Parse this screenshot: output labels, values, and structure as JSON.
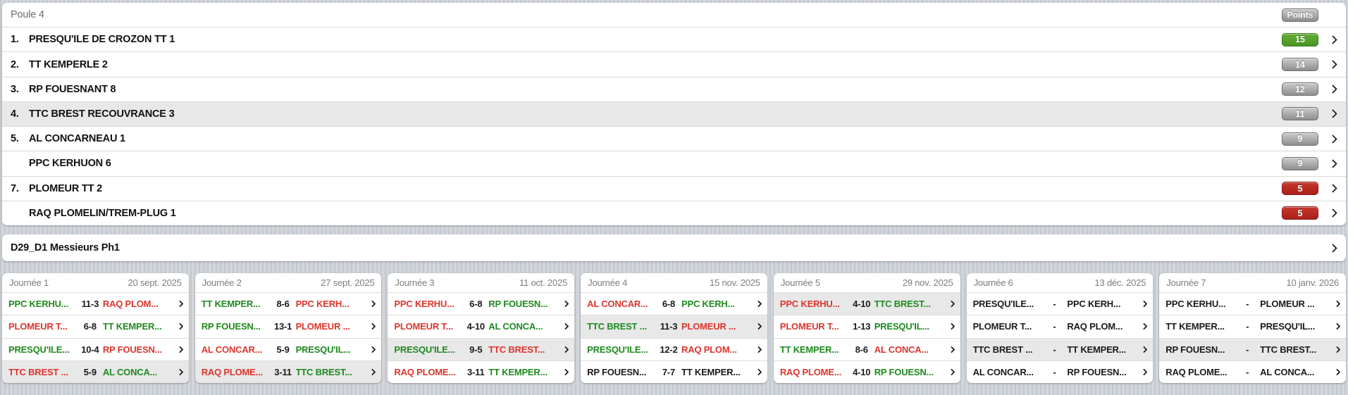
{
  "colors": {
    "win_green": "#1e8a1e",
    "loss_red": "#dd352c",
    "badge_green": "#4a9423",
    "badge_red": "#aa211a",
    "badge_gray": "#8e8e8e",
    "highlight_row": "#e8e8e8"
  },
  "standings": {
    "title": "Poule 4",
    "points_label": "Points",
    "rows": [
      {
        "rank": "1.",
        "team": "PRESQU'ILE DE CROZON TT 1",
        "points": "15",
        "badge": "green",
        "highlight": false
      },
      {
        "rank": "2.",
        "team": "TT KEMPERLE 2",
        "points": "14",
        "badge": "gray",
        "highlight": false
      },
      {
        "rank": "3.",
        "team": "RP FOUESNANT 8",
        "points": "12",
        "badge": "gray",
        "highlight": false
      },
      {
        "rank": "4.",
        "team": "TTC BREST RECOUVRANCE 3",
        "points": "11",
        "badge": "gray",
        "highlight": true
      },
      {
        "rank": "5.",
        "team": "AL CONCARNEAU 1",
        "points": "9",
        "badge": "gray",
        "highlight": false
      },
      {
        "rank": "",
        "team": "PPC KERHUON 6",
        "points": "9",
        "badge": "gray",
        "highlight": false
      },
      {
        "rank": "7.",
        "team": "PLOMEUR TT 2",
        "points": "5",
        "badge": "red",
        "highlight": false
      },
      {
        "rank": "",
        "team": "RAQ PLOMELIN/TREM-PLUG 1",
        "points": "5",
        "badge": "red",
        "highlight": false
      }
    ]
  },
  "division_bar": {
    "label": "D29_D1 Messieurs Ph1"
  },
  "rounds": [
    {
      "title": "Journée 1",
      "date": "20 sept. 2025",
      "matches": [
        {
          "home": "PPC KERHU...",
          "score": "11-3",
          "away": "RAQ PLOM...",
          "home_result": "win",
          "away_result": "loss",
          "highlight": false
        },
        {
          "home": "PLOMEUR T...",
          "score": "6-8",
          "away": "TT KEMPER...",
          "home_result": "loss",
          "away_result": "win",
          "highlight": false
        },
        {
          "home": "PRESQU'ILE...",
          "score": "10-4",
          "away": "RP FOUESN...",
          "home_result": "win",
          "away_result": "loss",
          "highlight": false
        },
        {
          "home": "TTC BREST ...",
          "score": "5-9",
          "away": "AL CONCA...",
          "home_result": "loss",
          "away_result": "win",
          "highlight": true
        }
      ]
    },
    {
      "title": "Journée 2",
      "date": "27 sept. 2025",
      "matches": [
        {
          "home": "TT KEMPER...",
          "score": "8-6",
          "away": "PPC KERH...",
          "home_result": "win",
          "away_result": "loss",
          "highlight": false
        },
        {
          "home": "RP FOUESN...",
          "score": "13-1",
          "away": "PLOMEUR ...",
          "home_result": "win",
          "away_result": "loss",
          "highlight": false
        },
        {
          "home": "AL CONCAR...",
          "score": "5-9",
          "away": "PRESQU'IL...",
          "home_result": "loss",
          "away_result": "win",
          "highlight": false
        },
        {
          "home": "RAQ PLOME...",
          "score": "3-11",
          "away": "TTC BREST...",
          "home_result": "loss",
          "away_result": "win",
          "highlight": true
        }
      ]
    },
    {
      "title": "Journée 3",
      "date": "11 oct. 2025",
      "matches": [
        {
          "home": "PPC KERHU...",
          "score": "6-8",
          "away": "RP FOUESN...",
          "home_result": "loss",
          "away_result": "win",
          "highlight": false
        },
        {
          "home": "PLOMEUR T...",
          "score": "4-10",
          "away": "AL CONCA...",
          "home_result": "loss",
          "away_result": "win",
          "highlight": false
        },
        {
          "home": "PRESQU'ILE...",
          "score": "9-5",
          "away": "TTC BREST...",
          "home_result": "win",
          "away_result": "loss",
          "highlight": true
        },
        {
          "home": "RAQ PLOME...",
          "score": "3-11",
          "away": "TT KEMPER...",
          "home_result": "loss",
          "away_result": "win",
          "highlight": false
        }
      ]
    },
    {
      "title": "Journée 4",
      "date": "15 nov. 2025",
      "matches": [
        {
          "home": "AL CONCAR...",
          "score": "6-8",
          "away": "PPC KERH...",
          "home_result": "loss",
          "away_result": "win",
          "highlight": false
        },
        {
          "home": "TTC BREST ...",
          "score": "11-3",
          "away": "PLOMEUR ...",
          "home_result": "win",
          "away_result": "loss",
          "highlight": true
        },
        {
          "home": "PRESQU'ILE...",
          "score": "12-2",
          "away": "RAQ PLOM...",
          "home_result": "win",
          "away_result": "loss",
          "highlight": false
        },
        {
          "home": "RP FOUESN...",
          "score": "7-7",
          "away": "TT KEMPER...",
          "home_result": "draw",
          "away_result": "draw",
          "highlight": false
        }
      ]
    },
    {
      "title": "Journée 5",
      "date": "29 nov. 2025",
      "matches": [
        {
          "home": "PPC KERHU...",
          "score": "4-10",
          "away": "TTC BREST...",
          "home_result": "loss",
          "away_result": "win",
          "highlight": true
        },
        {
          "home": "PLOMEUR T...",
          "score": "1-13",
          "away": "PRESQU'IL...",
          "home_result": "loss",
          "away_result": "win",
          "highlight": false
        },
        {
          "home": "TT KEMPER...",
          "score": "8-6",
          "away": "AL CONCA...",
          "home_result": "win",
          "away_result": "loss",
          "highlight": false
        },
        {
          "home": "RAQ PLOME...",
          "score": "4-10",
          "away": "RP FOUESN...",
          "home_result": "loss",
          "away_result": "win",
          "highlight": false
        }
      ]
    },
    {
      "title": "Journée 6",
      "date": "13 déc. 2025",
      "matches": [
        {
          "home": "PRESQU'ILE...",
          "score": "-",
          "away": "PPC KERH...",
          "home_result": "none",
          "away_result": "none",
          "highlight": false
        },
        {
          "home": "PLOMEUR T...",
          "score": "-",
          "away": "RAQ PLOM...",
          "home_result": "none",
          "away_result": "none",
          "highlight": false
        },
        {
          "home": "TTC BREST ...",
          "score": "-",
          "away": "TT KEMPER...",
          "home_result": "none",
          "away_result": "none",
          "highlight": true
        },
        {
          "home": "AL CONCAR...",
          "score": "-",
          "away": "RP FOUESN...",
          "home_result": "none",
          "away_result": "none",
          "highlight": false
        }
      ]
    },
    {
      "title": "Journée 7",
      "date": "10 janv. 2026",
      "matches": [
        {
          "home": "PPC KERHU...",
          "score": "-",
          "away": "PLOMEUR ...",
          "home_result": "none",
          "away_result": "none",
          "highlight": false
        },
        {
          "home": "TT KEMPER...",
          "score": "-",
          "away": "PRESQU'IL...",
          "home_result": "none",
          "away_result": "none",
          "highlight": false
        },
        {
          "home": "RP FOUESN...",
          "score": "-",
          "away": "TTC BREST...",
          "home_result": "none",
          "away_result": "none",
          "highlight": true
        },
        {
          "home": "RAQ PLOME...",
          "score": "-",
          "away": "AL CONCA...",
          "home_result": "none",
          "away_result": "none",
          "highlight": false
        }
      ]
    }
  ]
}
